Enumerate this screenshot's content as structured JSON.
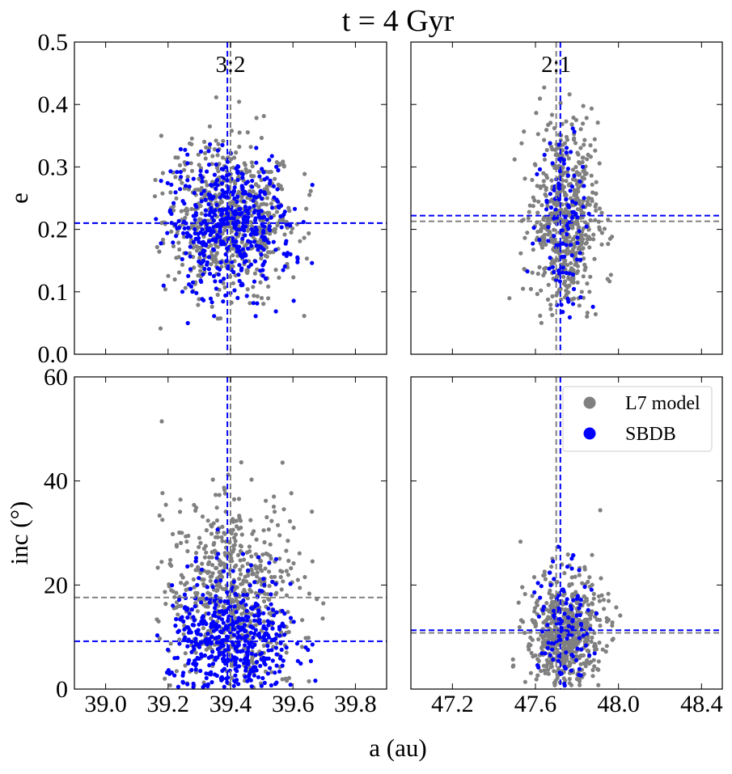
{
  "figure": {
    "title": "t = 4 Gyr",
    "xlabel": "a (au)"
  },
  "legend": {
    "entries": [
      {
        "label": "L7 model",
        "color": "#808080"
      },
      {
        "label": "SBDB",
        "color": "#0000ff"
      }
    ]
  },
  "colors": {
    "model": "#808080",
    "sbdb": "#0000ff"
  },
  "chart_data": [
    {
      "panel": "top-left",
      "type": "scatter",
      "annotation": "3:2",
      "xlabel": "",
      "ylabel": "e",
      "xlim": [
        38.9,
        39.9
      ],
      "ylim": [
        0.0,
        0.5
      ],
      "xticks": [],
      "yticks": [
        "0.0",
        "0.1",
        "0.2",
        "0.3",
        "0.4",
        "0.5"
      ],
      "resonance_line": {
        "model": 39.4,
        "sbdb": 39.39
      },
      "mean_line": {
        "model": 0.21,
        "sbdb": 0.21
      },
      "series": [
        {
          "name": "L7 model",
          "distribution": {
            "x_center": 39.4,
            "x_sigma": 0.105,
            "y_center": 0.215,
            "y_sigma": 0.06,
            "x_range": [
              39.15,
              39.7
            ],
            "y_range": [
              0.01,
              0.44
            ],
            "n": 620
          }
        },
        {
          "name": "SBDB",
          "distribution": {
            "x_center": 39.4,
            "x_sigma": 0.1,
            "y_center": 0.205,
            "y_sigma": 0.055,
            "x_range": [
              39.14,
              39.7
            ],
            "y_range": [
              0.03,
              0.38
            ],
            "n": 480
          }
        }
      ]
    },
    {
      "panel": "top-right",
      "type": "scatter",
      "annotation": "2:1",
      "xlabel": "",
      "ylabel": "",
      "xlim": [
        47.0,
        48.5
      ],
      "ylim": [
        0.0,
        0.5
      ],
      "xticks": [],
      "yticks": [],
      "resonance_line": {
        "model": 47.7,
        "sbdb": 47.72
      },
      "mean_line": {
        "model": 0.213,
        "sbdb": 0.222
      },
      "series": [
        {
          "name": "L7 model",
          "distribution": {
            "x_center": 47.74,
            "x_sigma": 0.08,
            "y_center": 0.21,
            "y_sigma": 0.08,
            "x_range": [
              47.4,
              48.4
            ],
            "y_range": [
              0.04,
              0.43
            ],
            "n": 560
          }
        },
        {
          "name": "SBDB",
          "distribution": {
            "x_center": 47.74,
            "x_sigma": 0.07,
            "y_center": 0.22,
            "y_sigma": 0.08,
            "x_range": [
              47.05,
              47.95
            ],
            "y_range": [
              0.03,
              0.38
            ],
            "n": 110
          }
        }
      ]
    },
    {
      "panel": "bottom-left",
      "type": "scatter",
      "annotation": "",
      "xlabel": "",
      "ylabel": "inc (°)",
      "xlim": [
        38.9,
        39.9
      ],
      "ylim": [
        0,
        60
      ],
      "xticks": [
        "39.0",
        "39.2",
        "39.4",
        "39.6",
        "39.8"
      ],
      "yticks": [
        "0",
        "20",
        "40",
        "60"
      ],
      "resonance_line": {
        "model": 39.4,
        "sbdb": 39.39
      },
      "mean_line": {
        "model": 17.6,
        "sbdb": 9.2
      },
      "series": [
        {
          "name": "L7 model",
          "distribution": {
            "x_center": 39.4,
            "x_sigma": 0.105,
            "y_center": 17.6,
            "y_sigma": 9.5,
            "x_range": [
              39.15,
              39.7
            ],
            "y_range": [
              0.3,
              59
            ],
            "n": 620
          }
        },
        {
          "name": "SBDB",
          "distribution": {
            "x_center": 39.4,
            "x_sigma": 0.1,
            "y_center": 9.2,
            "y_sigma": 6.5,
            "x_range": [
              39.14,
              39.7
            ],
            "y_range": [
              0.3,
              42
            ],
            "n": 480
          }
        }
      ]
    },
    {
      "panel": "bottom-right",
      "type": "scatter",
      "annotation": "",
      "xlabel": "",
      "ylabel": "",
      "xlim": [
        47.0,
        48.5
      ],
      "ylim": [
        0,
        60
      ],
      "xticks": [
        "47.2",
        "47.6",
        "48.0",
        "48.4"
      ],
      "yticks": [],
      "resonance_line": {
        "model": 47.7,
        "sbdb": 47.72
      },
      "mean_line": {
        "model": 10.8,
        "sbdb": 11.3
      },
      "series": [
        {
          "name": "L7 model",
          "distribution": {
            "x_center": 47.74,
            "x_sigma": 0.09,
            "y_center": 10.8,
            "y_sigma": 5.5,
            "x_range": [
              47.4,
              48.4
            ],
            "y_range": [
              0.3,
              38
            ],
            "n": 560
          }
        },
        {
          "name": "SBDB",
          "distribution": {
            "x_center": 47.74,
            "x_sigma": 0.06,
            "y_center": 11.3,
            "y_sigma": 6.5,
            "x_range": [
              47.05,
              47.95
            ],
            "y_range": [
              0.3,
              30
            ],
            "n": 110
          }
        }
      ]
    }
  ]
}
